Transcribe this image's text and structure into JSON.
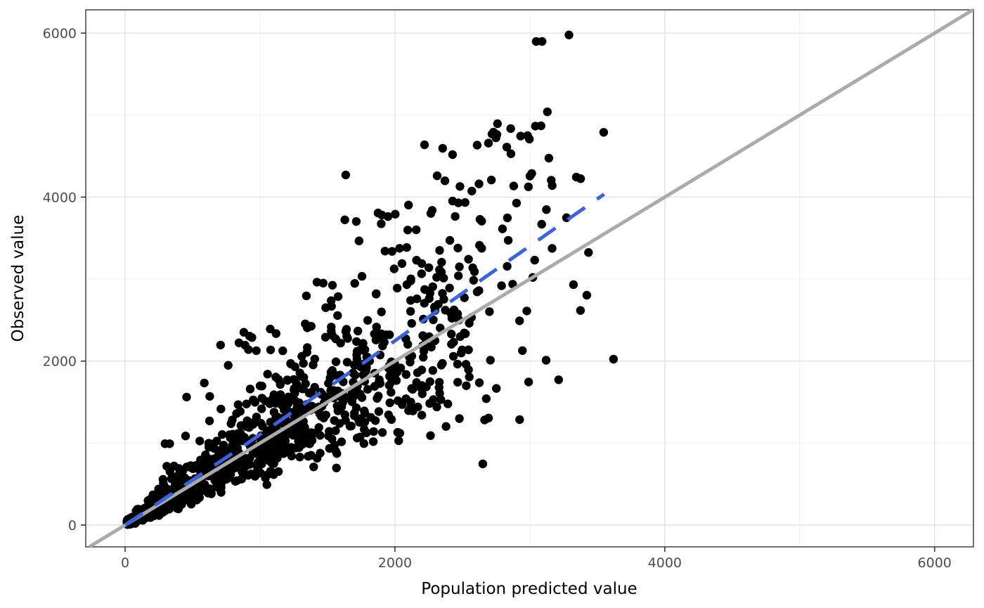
{
  "chart_data": {
    "type": "scatter",
    "title": "",
    "xlabel": "Population predicted value",
    "ylabel": "Observed value",
    "x_ticks": [
      0,
      2000,
      4000,
      6000
    ],
    "y_ticks": [
      0,
      2000,
      4000,
      6000
    ],
    "x_minor_ticks": [
      1000,
      3000,
      5000
    ],
    "y_minor_ticks": [
      1000,
      3000,
      5000
    ],
    "x_domain": [
      -292,
      6288
    ],
    "y_domain": [
      -266,
      6284
    ],
    "grid": true,
    "legend": "none",
    "colors": {
      "background": "#FFFFFF",
      "panel_background": "#FFFFFF",
      "grid_major": "#E4E4E4",
      "grid_minor": "#F0F0F0",
      "panel_border": "#333333",
      "tick_mark": "#333333",
      "tick_label": "#4D4D4D",
      "axis_title": "#000000",
      "point": "#000000",
      "identity_line": "#ABABAB",
      "fit_line": "#3963E1"
    },
    "point_radius": 6.2,
    "identity_line": {
      "description": "y = x reference line",
      "x1": -266,
      "y1": -266,
      "x2": 6284,
      "y2": 6284,
      "style": "solid",
      "width": 5
    },
    "fit_line": {
      "description": "dashed linear fit, slope ~1.13 through origin",
      "points": [
        [
          0,
          0
        ],
        [
          900,
          990
        ],
        [
          1800,
          2015
        ],
        [
          2700,
          3060
        ],
        [
          3550,
          4035
        ]
      ],
      "style": "dashed",
      "dash": [
        30,
        21
      ],
      "width": 5
    },
    "outlier_points": [
      [
        3047,
        5898
      ],
      [
        3090,
        5898
      ],
      [
        3290,
        5978
      ],
      [
        3130,
        5040
      ],
      [
        3083,
        4869
      ],
      [
        2760,
        4895
      ],
      [
        2730,
        4792
      ],
      [
        3547,
        4790
      ],
      [
        2219,
        4638
      ],
      [
        2427,
        4518
      ],
      [
        2313,
        4260
      ],
      [
        1635,
        4270
      ],
      [
        3141,
        4475
      ],
      [
        3344,
        4244
      ],
      [
        3165,
        4141
      ],
      [
        1875,
        3806
      ],
      [
        1948,
        3763
      ],
      [
        1713,
        3703
      ],
      [
        2427,
        3952
      ],
      [
        2470,
        3930
      ],
      [
        2901,
        3927
      ],
      [
        3323,
        2932
      ],
      [
        3422,
        2803
      ],
      [
        3620,
        2023
      ],
      [
        2651,
        746
      ]
    ],
    "cloud_spec": {
      "description": "approximation of the dense simulated point cloud (~1200 pts): y = x * lognormal ratio",
      "seed": 7,
      "x_clamp": [
        12,
        3640
      ],
      "groups": [
        {
          "name": "dense-core",
          "n": 880,
          "x_min": 15,
          "x_max": 2600,
          "x_pow": 2.2,
          "ratio_median": 1.0,
          "ratio_sigma": 0.26,
          "jitter": 70,
          "y_min": 8,
          "y_max": 4400
        },
        {
          "name": "mid-spread",
          "n": 195,
          "x_min": 1000,
          "x_max": 3450,
          "x_pow": 1.9,
          "ratio_median": 1.03,
          "ratio_sigma": 0.32,
          "jitter": 40,
          "y_min": 60,
          "y_max": 4300
        },
        {
          "name": "upper-band",
          "n": 44,
          "x_min": 1250,
          "x_max": 3100,
          "x_pow": 1.15,
          "ratio_median": 1.7,
          "ratio_sigma": 0.15,
          "jitter": 30,
          "y_min": 900,
          "y_max": 4880
        },
        {
          "name": "left-fan",
          "n": 26,
          "x_min": 280,
          "x_max": 1100,
          "x_pow": 1.2,
          "ratio_median": 2.15,
          "ratio_sigma": 0.24,
          "jitter": 40,
          "y_min": 400,
          "y_max": 2400
        },
        {
          "name": "low-tail",
          "n": 14,
          "x_min": 1350,
          "x_max": 2700,
          "x_pow": 1.0,
          "ratio_median": 0.56,
          "ratio_sigma": 0.13,
          "jitter": 30,
          "y_min": 450,
          "y_max": 1600
        }
      ]
    }
  }
}
